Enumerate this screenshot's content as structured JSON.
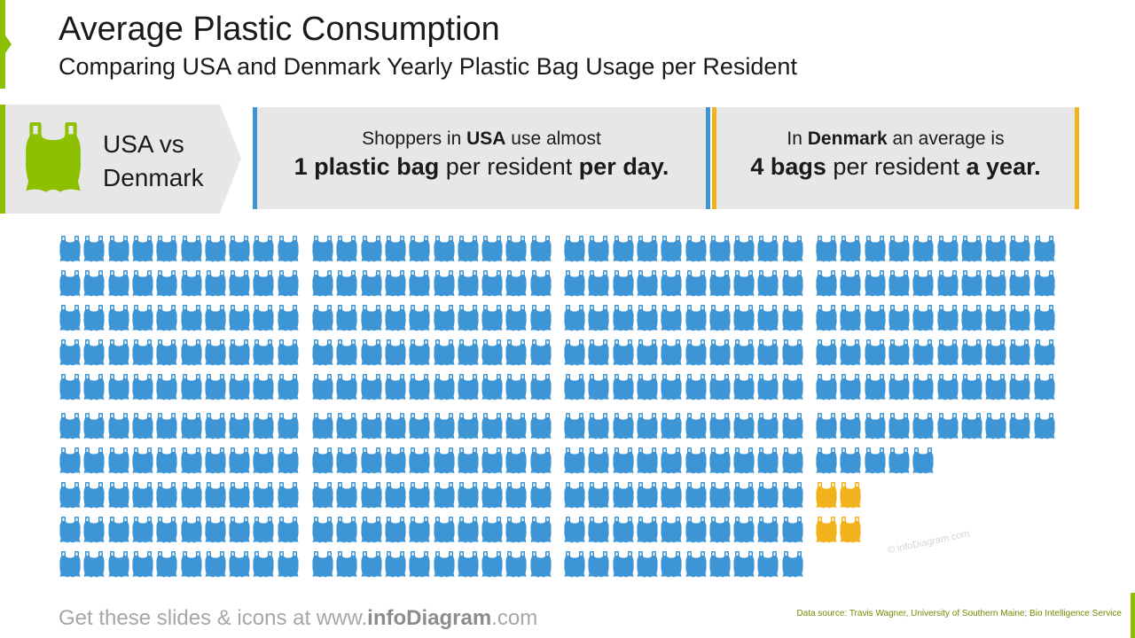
{
  "header": {
    "title": "Average Plastic Consumption",
    "subtitle": "Comparing USA and Denmark Yearly Plastic Bag Usage per Resident"
  },
  "intro": {
    "line1": "USA vs",
    "line2": "Denmark",
    "icon": "plastic-bag-icon"
  },
  "usa_fact": {
    "line1_pre": "Shoppers in ",
    "line1_bold": "USA",
    "line1_post": " use almost",
    "line2_bold1": "1 plastic bag",
    "line2_mid": " per resident ",
    "line2_bold2": "per day."
  },
  "denmark_fact": {
    "line1_pre": "In ",
    "line1_bold": "Denmark",
    "line1_post": " an average is",
    "line2_bold1": "4 bags",
    "line2_mid": " per resident ",
    "line2_bold2": "a year."
  },
  "pictogram": {
    "usa_bags": 365,
    "denmark_bags": 4,
    "usa_color": "#3d95d5",
    "denmark_color": "#f2b21c",
    "icon": "plastic-bag-icon"
  },
  "footer": {
    "pre": "Get these slides & icons at www.",
    "brand": "infoDiagram",
    "post": ".com",
    "source": "Data source: Travis Wagner, University of Southern Maine; Bio Intelligence Service",
    "watermark": "© infoDiagram.com"
  },
  "colors": {
    "accent_green": "#8cc000",
    "usa_blue": "#3d95d5",
    "denmark_yellow": "#f2b21c",
    "box_gray": "#e7e7e7"
  }
}
